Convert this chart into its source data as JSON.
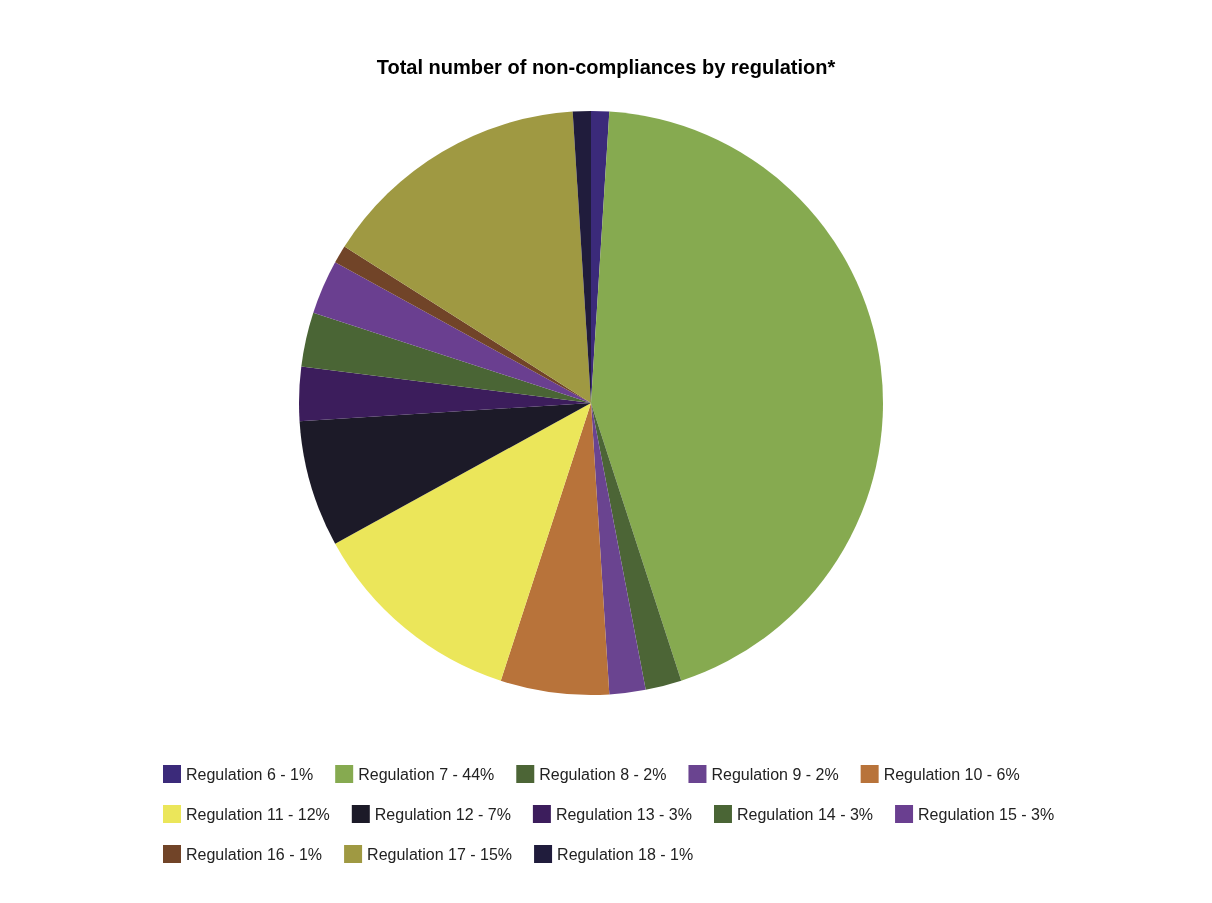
{
  "chart_data": {
    "type": "pie",
    "title": "Total number of non-compliances by regulation*",
    "categories": [
      "Regulation 6 - 1%",
      "Regulation 7 - 44%",
      "Regulation 8 - 2%",
      "Regulation 9 - 2%",
      "Regulation 10 - 6%",
      "Regulation 11 - 12%",
      "Regulation 12 - 7%",
      "Regulation 13 - 3%",
      "Regulation 14 - 3%",
      "Regulation 15 - 3%",
      "Regulation 16 - 1%",
      "Regulation 17 - 15%",
      "Regulation 18 - 1%"
    ],
    "values": [
      1,
      44,
      2,
      2,
      6,
      12,
      7,
      3,
      3,
      3,
      1,
      15,
      1
    ],
    "colors": [
      "#3b2a7a",
      "#86aa50",
      "#4c6536",
      "#6a4490",
      "#b8733a",
      "#ebe65a",
      "#1c1a28",
      "#3c1d5c",
      "#4a6535",
      "#6a3f90",
      "#714428",
      "#9f9942",
      "#201c3c"
    ],
    "legend": "bottom"
  }
}
